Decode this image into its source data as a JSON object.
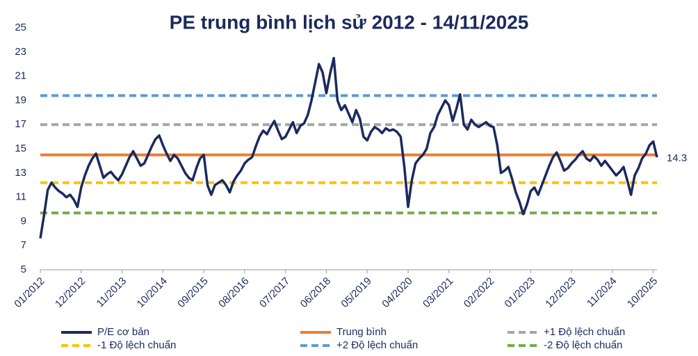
{
  "chart_data": {
    "type": "line",
    "title": "PE trung bình lịch sử 2012 - 14/11/2025",
    "categories": [
      "01/2012",
      null,
      null,
      null,
      null,
      null,
      null,
      null,
      null,
      null,
      null,
      "12/2012",
      null,
      null,
      null,
      null,
      null,
      null,
      null,
      null,
      null,
      null,
      "11/2013",
      null,
      null,
      null,
      null,
      null,
      null,
      null,
      null,
      null,
      null,
      "10/2014",
      null,
      null,
      null,
      null,
      null,
      null,
      null,
      null,
      null,
      null,
      "09/2015",
      null,
      null,
      null,
      null,
      null,
      null,
      null,
      null,
      null,
      null,
      "08/2016",
      null,
      null,
      null,
      null,
      null,
      null,
      null,
      null,
      null,
      null,
      "07/2017",
      null,
      null,
      null,
      null,
      null,
      null,
      null,
      null,
      null,
      null,
      "06/2018",
      null,
      null,
      null,
      null,
      null,
      null,
      null,
      null,
      null,
      null,
      "05/2019",
      null,
      null,
      null,
      null,
      null,
      null,
      null,
      null,
      null,
      null,
      "04/2020",
      null,
      null,
      null,
      null,
      null,
      null,
      null,
      null,
      null,
      null,
      "03/2021",
      null,
      null,
      null,
      null,
      null,
      null,
      null,
      null,
      null,
      null,
      "02/2022",
      null,
      null,
      null,
      null,
      null,
      null,
      null,
      null,
      null,
      null,
      "01/2023",
      null,
      null,
      null,
      null,
      null,
      null,
      null,
      null,
      null,
      null,
      "12/2023",
      null,
      null,
      null,
      null,
      null,
      null,
      null,
      null,
      null,
      null,
      "11/2024",
      null,
      null,
      null,
      null,
      null,
      null,
      null,
      null,
      null,
      null,
      "10/2025",
      null
    ],
    "series": [
      {
        "name": "P/E cơ bản",
        "color": "#1b2a5e",
        "values": [
          7.6,
          9.5,
          11.6,
          12.2,
          11.8,
          11.5,
          11.3,
          11.0,
          11.2,
          10.8,
          10.2,
          11.8,
          12.8,
          13.6,
          14.2,
          14.6,
          13.6,
          12.6,
          12.9,
          13.1,
          12.7,
          12.4,
          12.9,
          13.6,
          14.3,
          14.8,
          14.2,
          13.6,
          13.8,
          14.5,
          15.2,
          15.8,
          16.1,
          15.3,
          14.6,
          14.0,
          14.5,
          14.2,
          13.6,
          13.0,
          12.6,
          12.4,
          13.4,
          14.2,
          14.5,
          12.0,
          11.2,
          12.0,
          12.2,
          12.4,
          12.0,
          11.4,
          12.3,
          12.8,
          13.2,
          13.8,
          14.1,
          14.3,
          15.2,
          16.0,
          16.5,
          16.2,
          16.8,
          17.3,
          16.5,
          15.8,
          16.0,
          16.6,
          17.2,
          16.3,
          16.9,
          17.1,
          17.8,
          19.0,
          20.5,
          22.0,
          21.3,
          19.6,
          21.2,
          22.5,
          19.0,
          18.2,
          18.6,
          17.9,
          17.2,
          18.2,
          17.5,
          16.0,
          15.7,
          16.4,
          16.8,
          16.6,
          16.3,
          16.7,
          16.5,
          16.6,
          16.4,
          16.0,
          13.5,
          10.2,
          12.4,
          13.8,
          14.2,
          14.5,
          15.0,
          16.3,
          16.8,
          17.8,
          18.4,
          19.0,
          18.6,
          17.3,
          18.3,
          19.5,
          17.0,
          16.6,
          17.4,
          17.0,
          16.8,
          17.0,
          17.2,
          16.9,
          16.8,
          15.3,
          13.0,
          13.2,
          13.5,
          12.5,
          11.4,
          10.6,
          9.6,
          10.4,
          11.5,
          11.8,
          11.2,
          12.0,
          12.8,
          13.6,
          14.3,
          14.7,
          14.0,
          13.2,
          13.4,
          13.8,
          14.1,
          14.5,
          14.8,
          14.2,
          14.0,
          14.4,
          14.1,
          13.6,
          14.0,
          13.6,
          13.2,
          12.8,
          13.1,
          13.5,
          12.4,
          11.2,
          12.8,
          13.4,
          14.2,
          14.6,
          15.3,
          15.6,
          14.3
        ]
      }
    ],
    "reference_lines": [
      {
        "name": "Trung bình",
        "color": "#ed7d31",
        "value": 14.5,
        "dashed": false
      },
      {
        "name": "+1 Độ lệch chuẩn",
        "color": "#a5a5a5",
        "value": 17.0,
        "dashed": true
      },
      {
        "name": "-1 Độ lệch chuẩn",
        "color": "#ffc000",
        "value": 12.2,
        "dashed": true
      },
      {
        "name": "+2 Độ lệch chuẩn",
        "color": "#5b9bd5",
        "value": 19.4,
        "dashed": true
      },
      {
        "name": "-2 Độ lệch chuẩn",
        "color": "#70ad47",
        "value": 9.7,
        "dashed": true
      }
    ],
    "ylim": [
      5,
      25
    ],
    "yticks": [
      5,
      7,
      9,
      11,
      13,
      15,
      17,
      19,
      21,
      23,
      25
    ],
    "grid": false,
    "legend": "bottom"
  }
}
